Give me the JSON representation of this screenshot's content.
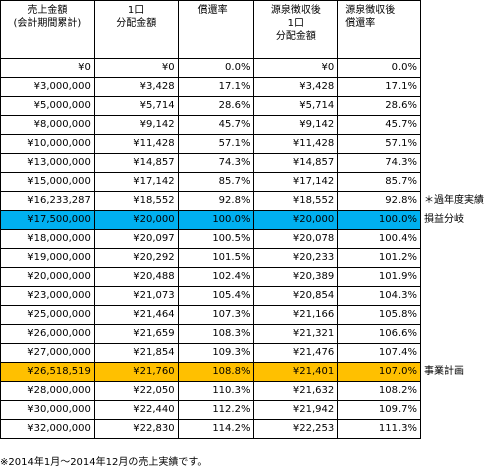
{
  "headers": [
    [
      "売上金額",
      "(会計期間累計)"
    ],
    [
      "1口",
      "分配金額"
    ],
    [
      "償還率"
    ],
    [
      "源泉徴収後",
      "1口",
      "分配金額"
    ],
    [
      "源泉徴収後",
      "償還率"
    ]
  ],
  "rows": [
    {
      "sales": "¥0",
      "dist": "¥0",
      "rate": "0.0%",
      "dist_after": "¥0",
      "rate_after": "0.0%",
      "note": ""
    },
    {
      "sales": "¥3,000,000",
      "dist": "¥3,428",
      "rate": "17.1%",
      "dist_after": "¥3,428",
      "rate_after": "17.1%",
      "note": ""
    },
    {
      "sales": "¥5,000,000",
      "dist": "¥5,714",
      "rate": "28.6%",
      "dist_after": "¥5,714",
      "rate_after": "28.6%",
      "note": ""
    },
    {
      "sales": "¥8,000,000",
      "dist": "¥9,142",
      "rate": "45.7%",
      "dist_after": "¥9,142",
      "rate_after": "45.7%",
      "note": ""
    },
    {
      "sales": "¥10,000,000",
      "dist": "¥11,428",
      "rate": "57.1%",
      "dist_after": "¥11,428",
      "rate_after": "57.1%",
      "note": ""
    },
    {
      "sales": "¥13,000,000",
      "dist": "¥14,857",
      "rate": "74.3%",
      "dist_after": "¥14,857",
      "rate_after": "74.3%",
      "note": ""
    },
    {
      "sales": "¥15,000,000",
      "dist": "¥17,142",
      "rate": "85.7%",
      "dist_after": "¥17,142",
      "rate_after": "85.7%",
      "note": ""
    },
    {
      "sales": "¥16,233,287",
      "dist": "¥18,552",
      "rate": "92.8%",
      "dist_after": "¥18,552",
      "rate_after": "92.8%",
      "note": "＊過年度実績"
    },
    {
      "sales": "¥17,500,000",
      "dist": "¥20,000",
      "rate": "100.0%",
      "dist_after": "¥20,000",
      "rate_after": "100.0%",
      "note": "損益分岐",
      "highlight": "blue"
    },
    {
      "sales": "¥18,000,000",
      "dist": "¥20,097",
      "rate": "100.5%",
      "dist_after": "¥20,078",
      "rate_after": "100.4%",
      "note": ""
    },
    {
      "sales": "¥19,000,000",
      "dist": "¥20,292",
      "rate": "101.5%",
      "dist_after": "¥20,233",
      "rate_after": "101.2%",
      "note": ""
    },
    {
      "sales": "¥20,000,000",
      "dist": "¥20,488",
      "rate": "102.4%",
      "dist_after": "¥20,389",
      "rate_after": "101.9%",
      "note": ""
    },
    {
      "sales": "¥23,000,000",
      "dist": "¥21,073",
      "rate": "105.4%",
      "dist_after": "¥20,854",
      "rate_after": "104.3%",
      "note": ""
    },
    {
      "sales": "¥25,000,000",
      "dist": "¥21,464",
      "rate": "107.3%",
      "dist_after": "¥21,166",
      "rate_after": "105.8%",
      "note": ""
    },
    {
      "sales": "¥26,000,000",
      "dist": "¥21,659",
      "rate": "108.3%",
      "dist_after": "¥21,321",
      "rate_after": "106.6%",
      "note": ""
    },
    {
      "sales": "¥27,000,000",
      "dist": "¥21,854",
      "rate": "109.3%",
      "dist_after": "¥21,476",
      "rate_after": "107.4%",
      "note": ""
    },
    {
      "sales": "¥26,518,519",
      "dist": "¥21,760",
      "rate": "108.8%",
      "dist_after": "¥21,401",
      "rate_after": "107.0%",
      "note": "事業計画",
      "highlight": "orange"
    },
    {
      "sales": "¥28,000,000",
      "dist": "¥22,050",
      "rate": "110.3%",
      "dist_after": "¥21,632",
      "rate_after": "108.2%",
      "note": ""
    },
    {
      "sales": "¥30,000,000",
      "dist": "¥22,440",
      "rate": "112.2%",
      "dist_after": "¥21,942",
      "rate_after": "109.7%",
      "note": ""
    },
    {
      "sales": "¥32,000,000",
      "dist": "¥22,830",
      "rate": "114.2%",
      "dist_after": "¥22,253",
      "rate_after": "111.3%",
      "note": ""
    }
  ],
  "footnote": "※2014年1月～2014年12月の売上実績です。",
  "colors": {
    "highlight_blue": "#00b0f0",
    "highlight_orange": "#ffc000"
  }
}
